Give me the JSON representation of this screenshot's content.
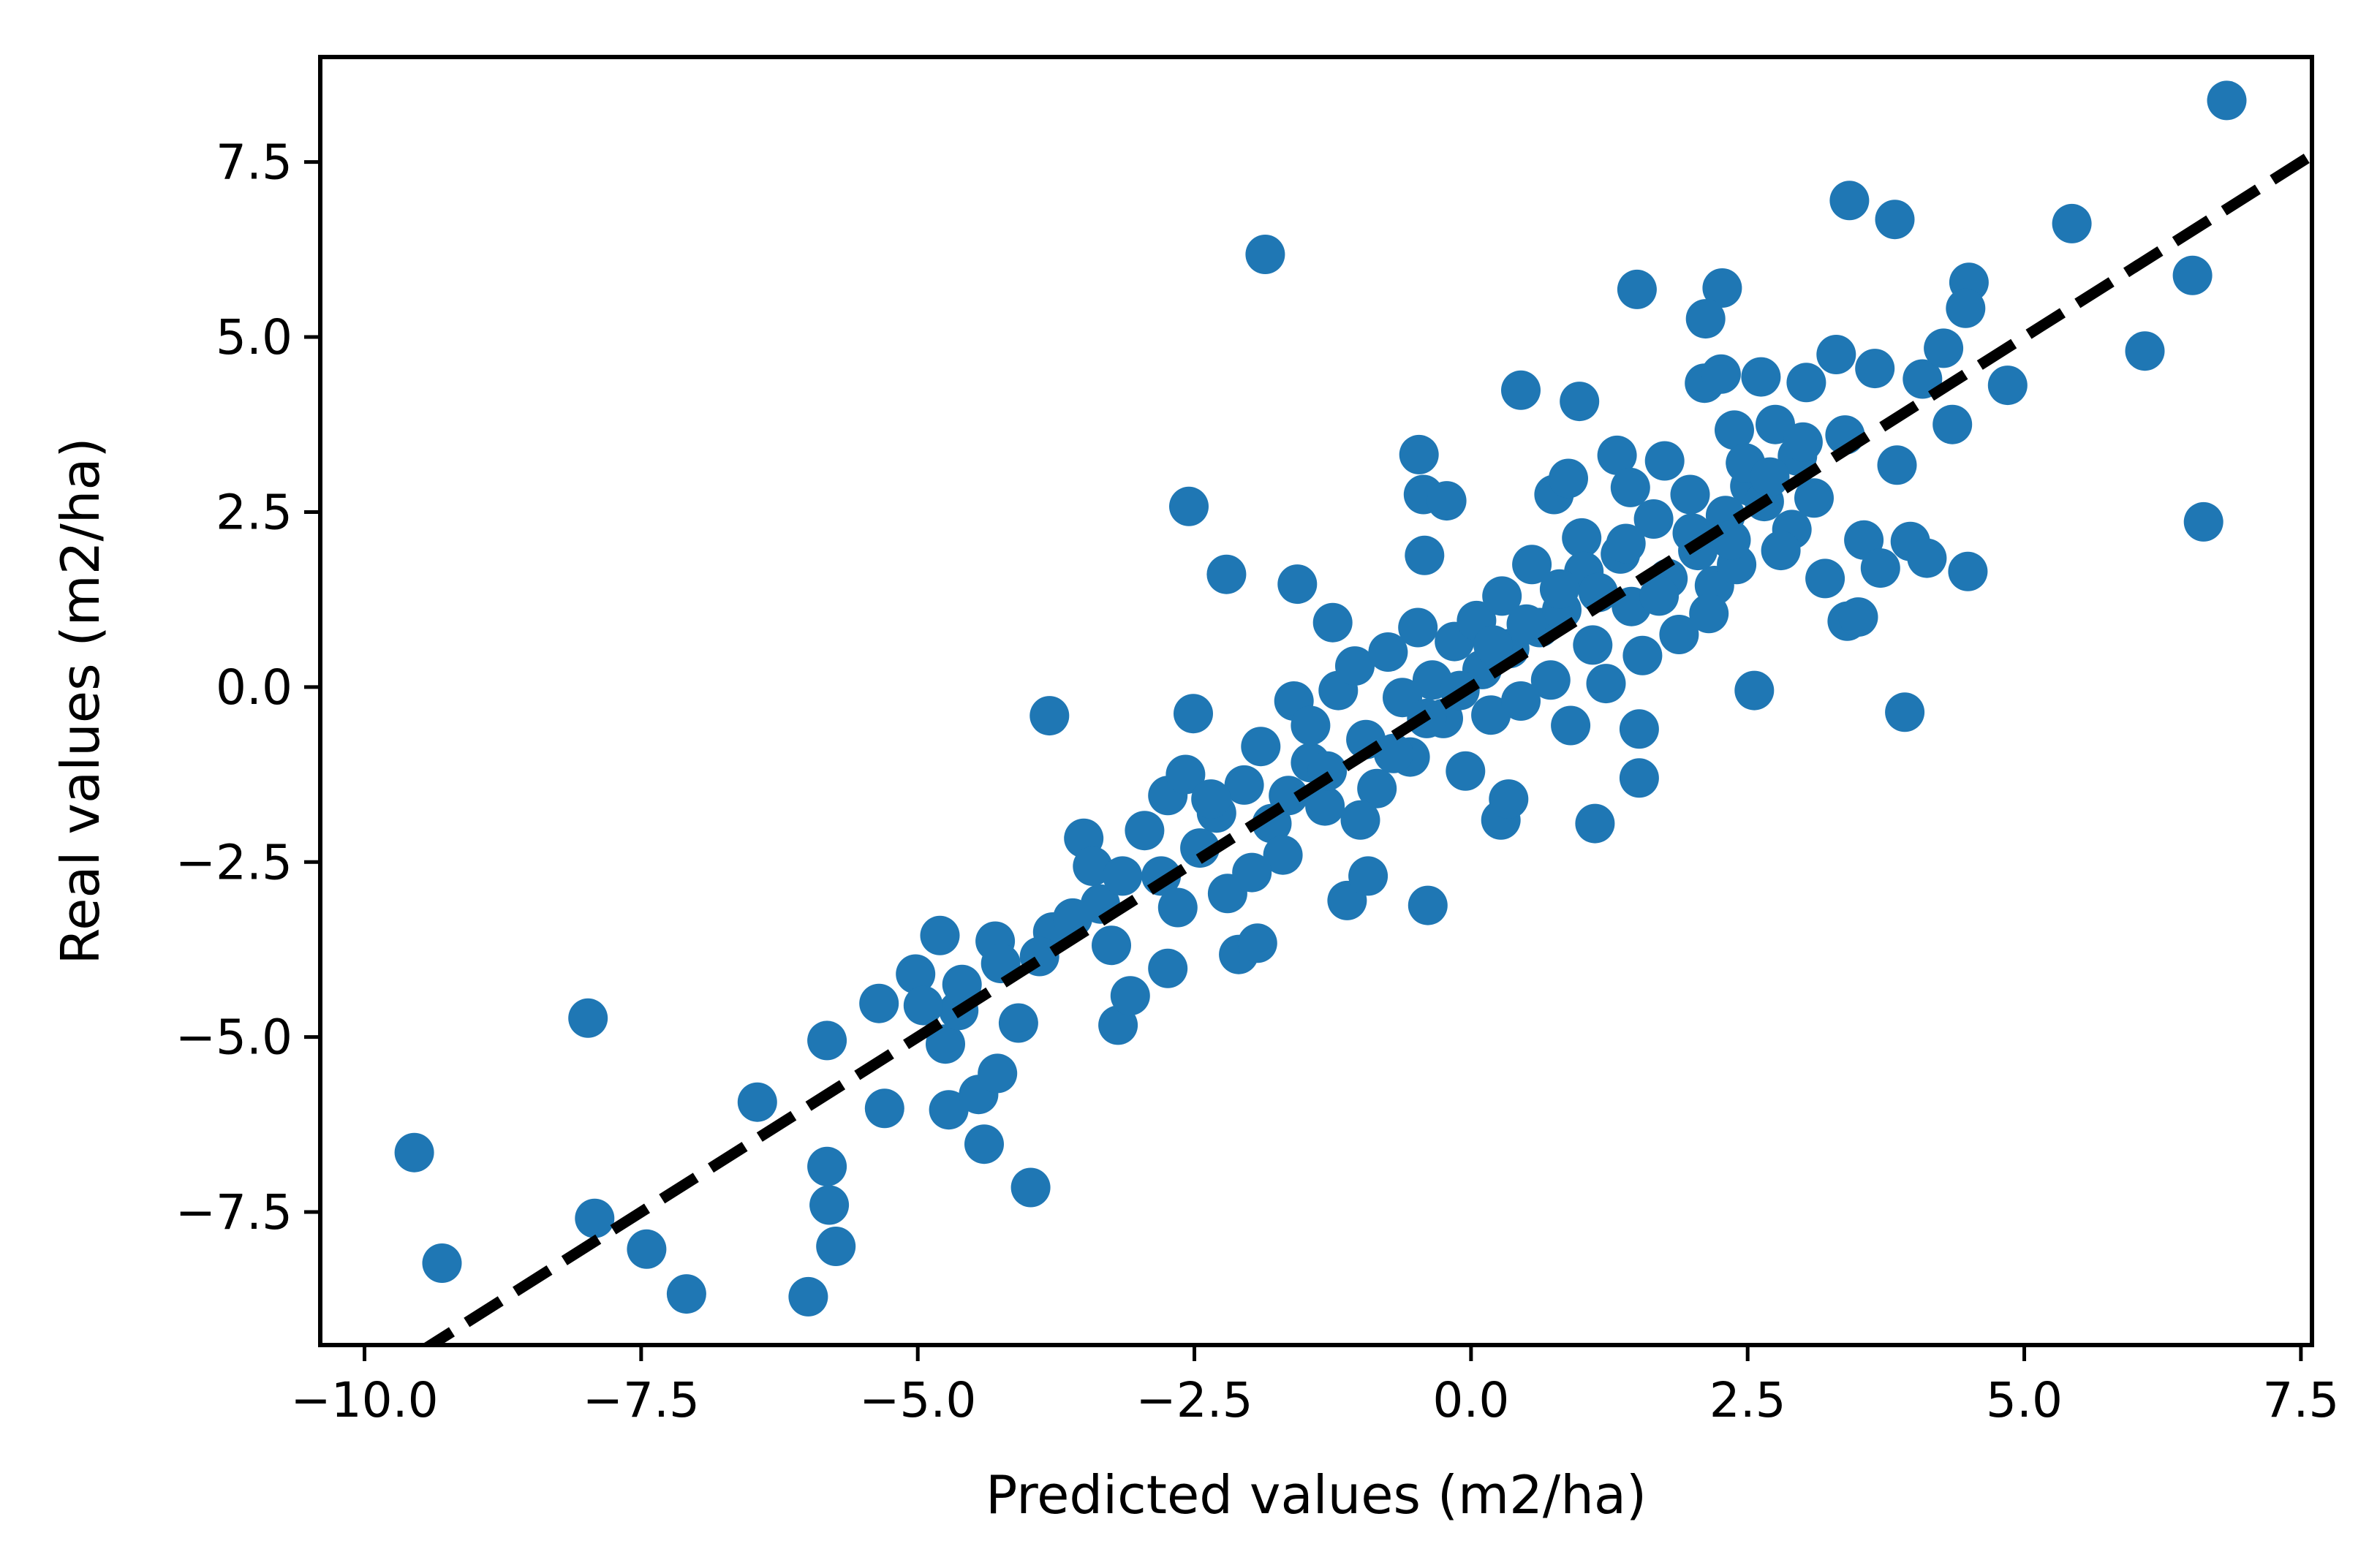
{
  "chart_data": {
    "type": "scatter",
    "xlabel": "Predicted values (m2/ha)",
    "ylabel": "Real values (m2/ha)",
    "xlim": [
      -10.4,
      7.6
    ],
    "ylim": [
      -9.4,
      9.0
    ],
    "x_ticks": [
      -10.0,
      -7.5,
      -5.0,
      -2.5,
      0.0,
      2.5,
      5.0,
      7.5
    ],
    "x_tick_labels": [
      "−10.0",
      "−7.5",
      "−5.0",
      "−2.5",
      "0.0",
      "2.5",
      "5.0",
      "7.5"
    ],
    "y_ticks": [
      -7.5,
      -5.0,
      -2.5,
      0.0,
      2.5,
      5.0,
      7.5
    ],
    "y_tick_labels": [
      "−7.5",
      "−5.0",
      "−2.5",
      "0.0",
      "2.5",
      "5.0",
      "7.5"
    ],
    "grid": false,
    "legend": "none",
    "marker_color": "#1f77b4",
    "reference_line": {
      "style": "dashed",
      "color": "#000000",
      "x": [
        -10.4,
        7.6
      ],
      "y": [
        -10.4,
        7.6
      ]
    },
    "series": [
      {
        "points": [
          [
            6.83,
            8.38
          ],
          [
            3.42,
            6.95
          ],
          [
            3.83,
            6.68
          ],
          [
            5.43,
            6.62
          ],
          [
            -1.86,
            6.18
          ],
          [
            6.52,
            5.88
          ],
          [
            1.5,
            5.68
          ],
          [
            2.27,
            5.7
          ],
          [
            4.5,
            5.78
          ],
          [
            4.47,
            5.41
          ],
          [
            2.12,
            5.26
          ],
          [
            6.09,
            4.8
          ],
          [
            4.85,
            4.31
          ],
          [
            0.45,
            4.24
          ],
          [
            0.98,
            4.08
          ],
          [
            -9.55,
            -6.65
          ],
          [
            -9.3,
            -8.23
          ],
          [
            -7.98,
            -4.73
          ],
          [
            -7.92,
            -7.59
          ],
          [
            -7.45,
            -8.03
          ],
          [
            -7.09,
            -8.67
          ],
          [
            -6.45,
            -5.93
          ],
          [
            -5.99,
            -8.71
          ],
          [
            -5.82,
            -6.85
          ],
          [
            -5.8,
            -7.4
          ],
          [
            -5.74,
            -7.99
          ],
          [
            -5.82,
            -5.05
          ],
          [
            -5.35,
            -4.52
          ],
          [
            -5.3,
            -6.02
          ],
          [
            -5.02,
            -4.1
          ],
          [
            -4.8,
            -3.55
          ],
          [
            -4.75,
            -5.1
          ],
          [
            -4.72,
            -6.04
          ],
          [
            -4.63,
            -4.62
          ],
          [
            -4.45,
            -5.82
          ],
          [
            -4.4,
            -6.53
          ],
          [
            -4.3,
            -3.63
          ],
          [
            -4.28,
            -5.52
          ],
          [
            -4.09,
            -4.8
          ],
          [
            -3.98,
            -7.15
          ],
          [
            -3.81,
            -0.41
          ],
          [
            -3.5,
            -2.16
          ],
          [
            -3.42,
            -2.56
          ],
          [
            -3.25,
            -3.69
          ],
          [
            -3.19,
            -4.83
          ],
          [
            -3.08,
            -4.41
          ],
          [
            -2.74,
            -4.02
          ],
          [
            -2.74,
            -1.55
          ],
          [
            -2.58,
            -1.25
          ],
          [
            -2.55,
            2.58
          ],
          [
            -2.51,
            -0.38
          ],
          [
            -2.21,
            1.61
          ],
          [
            -2.1,
            -3.82
          ],
          [
            -1.93,
            -3.66
          ],
          [
            -1.57,
            1.47
          ],
          [
            -1.45,
            -1.08
          ],
          [
            -1.25,
            0.92
          ],
          [
            -1.12,
            -3.05
          ],
          [
            -0.93,
            -2.7
          ],
          [
            -0.47,
            3.32
          ],
          [
            -0.43,
            2.75
          ],
          [
            -0.42,
            1.88
          ],
          [
            -0.39,
            -3.12
          ],
          [
            -0.22,
            2.66
          ],
          [
            0.27,
            -1.9
          ],
          [
            0.34,
            -1.6
          ],
          [
            0.75,
            2.75
          ],
          [
            0.88,
            2.98
          ],
          [
            1.0,
            2.13
          ],
          [
            1.12,
            -1.95
          ],
          [
            1.32,
            3.31
          ],
          [
            1.44,
            2.85
          ],
          [
            1.52,
            -0.6
          ],
          [
            1.52,
            -1.3
          ],
          [
            1.75,
            3.23
          ],
          [
            2.11,
            4.34
          ],
          [
            2.2,
            1.45
          ],
          [
            2.26,
            4.47
          ],
          [
            2.38,
            3.67
          ],
          [
            2.52,
            2.87
          ],
          [
            2.56,
            -0.05
          ],
          [
            2.62,
            4.43
          ],
          [
            2.75,
            3.75
          ],
          [
            2.9,
            2.25
          ],
          [
            3.03,
            4.35
          ],
          [
            3.3,
            4.75
          ],
          [
            3.4,
            0.94
          ],
          [
            3.5,
            1.0
          ],
          [
            3.65,
            4.55
          ],
          [
            3.85,
            3.17
          ],
          [
            3.92,
            -0.36
          ],
          [
            3.97,
            2.08
          ],
          [
            4.08,
            4.4
          ],
          [
            4.12,
            1.84
          ],
          [
            4.27,
            4.84
          ],
          [
            4.35,
            3.75
          ],
          [
            4.49,
            1.65
          ],
          [
            6.62,
            2.36
          ],
          [
            -3.78,
            -3.5
          ],
          [
            -3.35,
            -3.1
          ],
          [
            -2.95,
            -2.05
          ],
          [
            -2.8,
            -2.7
          ],
          [
            -2.45,
            -2.3
          ],
          [
            -2.3,
            -1.8
          ],
          [
            -2.2,
            -2.95
          ],
          [
            -2.05,
            -1.4
          ],
          [
            -1.9,
            -0.85
          ],
          [
            -1.8,
            -1.95
          ],
          [
            -1.7,
            -2.4
          ],
          [
            -1.6,
            -0.2
          ],
          [
            -1.45,
            -0.55
          ],
          [
            -1.32,
            -1.7
          ],
          [
            -1.2,
            -0.05
          ],
          [
            -1.05,
            0.3
          ],
          [
            -0.95,
            -0.75
          ],
          [
            -0.85,
            -1.45
          ],
          [
            -0.75,
            0.5
          ],
          [
            -0.62,
            -0.15
          ],
          [
            -0.55,
            -1.0
          ],
          [
            -0.48,
            0.85
          ],
          [
            -0.35,
            0.1
          ],
          [
            -0.25,
            -0.45
          ],
          [
            -0.15,
            0.65
          ],
          [
            -0.05,
            -1.2
          ],
          [
            0.05,
            0.95
          ],
          [
            0.1,
            0.25
          ],
          [
            0.18,
            -0.4
          ],
          [
            0.28,
            1.3
          ],
          [
            0.35,
            0.55
          ],
          [
            0.45,
            -0.2
          ],
          [
            0.55,
            1.75
          ],
          [
            0.62,
            0.85
          ],
          [
            0.72,
            0.1
          ],
          [
            0.82,
            1.1
          ],
          [
            0.9,
            -0.55
          ],
          [
            1.02,
            1.65
          ],
          [
            1.1,
            0.6
          ],
          [
            1.22,
            0.05
          ],
          [
            1.35,
            1.9
          ],
          [
            1.45,
            1.15
          ],
          [
            1.55,
            0.45
          ],
          [
            1.65,
            2.4
          ],
          [
            1.78,
            1.55
          ],
          [
            1.88,
            0.75
          ],
          [
            1.98,
            2.75
          ],
          [
            2.05,
            1.95
          ],
          [
            2.15,
            1.05
          ],
          [
            2.3,
            2.45
          ],
          [
            2.4,
            1.75
          ],
          [
            2.48,
            3.2
          ],
          [
            2.65,
            2.65
          ],
          [
            2.8,
            1.95
          ],
          [
            2.95,
            3.3
          ],
          [
            3.1,
            2.7
          ],
          [
            3.2,
            1.55
          ],
          [
            3.38,
            3.6
          ],
          [
            3.55,
            2.1
          ],
          [
            3.7,
            1.7
          ],
          [
            -4.95,
            -4.55
          ],
          [
            -4.6,
            -4.25
          ],
          [
            -4.25,
            -3.95
          ],
          [
            -3.9,
            -3.85
          ],
          [
            -3.6,
            -3.3
          ],
          [
            -3.15,
            -2.7
          ],
          [
            -2.65,
            -3.15
          ],
          [
            -2.35,
            -1.6
          ],
          [
            -1.98,
            -2.65
          ],
          [
            -1.65,
            -1.55
          ],
          [
            -1.3,
            -1.2
          ],
          [
            -1.0,
            -1.9
          ],
          [
            -0.7,
            -0.95
          ],
          [
            -0.4,
            -0.45
          ],
          [
            -0.1,
            -0.05
          ],
          [
            0.2,
            0.6
          ],
          [
            0.5,
            0.9
          ],
          [
            0.8,
            1.4
          ],
          [
            1.15,
            1.35
          ],
          [
            1.4,
            2.05
          ],
          [
            1.7,
            1.3
          ],
          [
            2.0,
            2.2
          ],
          [
            2.35,
            2.1
          ],
          [
            2.7,
            3.0
          ],
          [
            3.0,
            3.5
          ]
        ]
      }
    ]
  }
}
